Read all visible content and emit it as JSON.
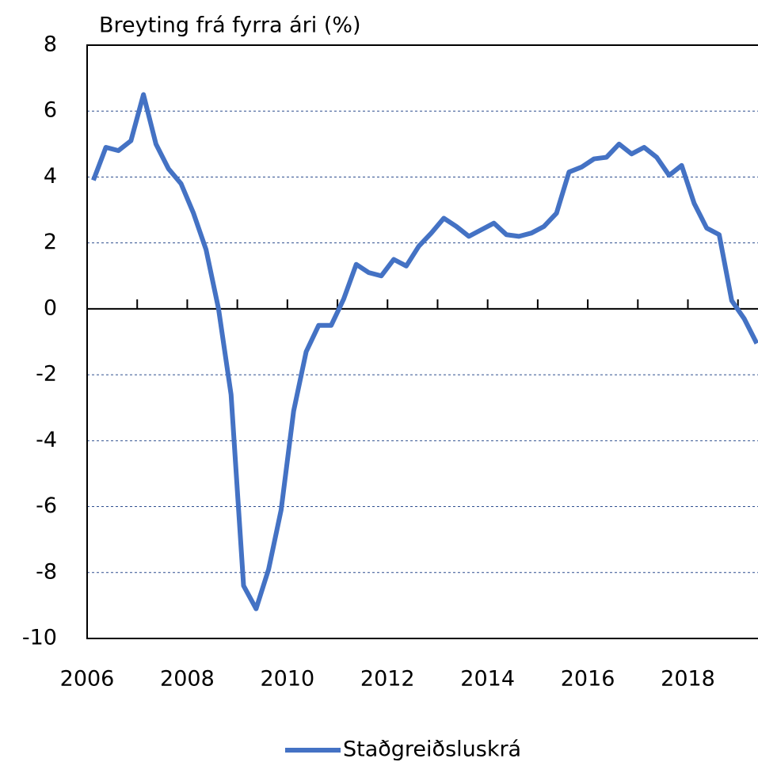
{
  "chart_data": {
    "type": "line",
    "title": "Breyting frá fyrra ári (%)",
    "x": [
      2006.125,
      2006.375,
      2006.625,
      2006.875,
      2007.125,
      2007.375,
      2007.625,
      2007.875,
      2008.125,
      2008.375,
      2008.625,
      2008.875,
      2009.125,
      2009.375,
      2009.625,
      2009.875,
      2010.125,
      2010.375,
      2010.625,
      2010.875,
      2011.125,
      2011.375,
      2011.625,
      2011.875,
      2012.125,
      2012.375,
      2012.625,
      2012.875,
      2013.125,
      2013.375,
      2013.625,
      2013.875,
      2014.125,
      2014.375,
      2014.625,
      2014.875,
      2015.125,
      2015.375,
      2015.625,
      2015.875,
      2016.125,
      2016.375,
      2016.625,
      2016.875,
      2017.125,
      2017.375,
      2017.625,
      2017.875,
      2018.125,
      2018.375,
      2018.625,
      2018.875,
      2019.125,
      2019.375
    ],
    "series": [
      {
        "name": "Staðgreiðsluskrá",
        "color": "#4472c4",
        "values": [
          3.9,
          4.9,
          4.8,
          5.1,
          6.5,
          5.0,
          4.25,
          3.8,
          2.9,
          1.8,
          0.0,
          -2.6,
          -8.4,
          -9.1,
          -7.9,
          -6.1,
          -3.1,
          -1.3,
          -0.5,
          -0.5,
          0.3,
          1.35,
          1.1,
          1.0,
          1.5,
          1.3,
          1.9,
          2.3,
          2.75,
          2.5,
          2.2,
          2.4,
          2.6,
          2.25,
          2.2,
          2.3,
          2.5,
          2.9,
          4.15,
          4.3,
          4.55,
          4.6,
          5.0,
          4.7,
          4.9,
          4.6,
          4.05,
          4.35,
          3.2,
          2.45,
          2.25,
          0.25,
          -0.3,
          -1.05
        ]
      }
    ],
    "xlim": [
      2006,
      2019.4
    ],
    "xticks": [
      2006,
      2008,
      2010,
      2012,
      2014,
      2016,
      2018
    ],
    "xminorticks": [
      2007,
      2009,
      2011,
      2013,
      2015,
      2017,
      2019
    ],
    "ylim": [
      -10,
      8
    ],
    "yticks": [
      -10,
      -8,
      -6,
      -4,
      -2,
      0,
      2,
      4,
      6,
      8
    ],
    "grid": true,
    "legend": "bottom"
  }
}
